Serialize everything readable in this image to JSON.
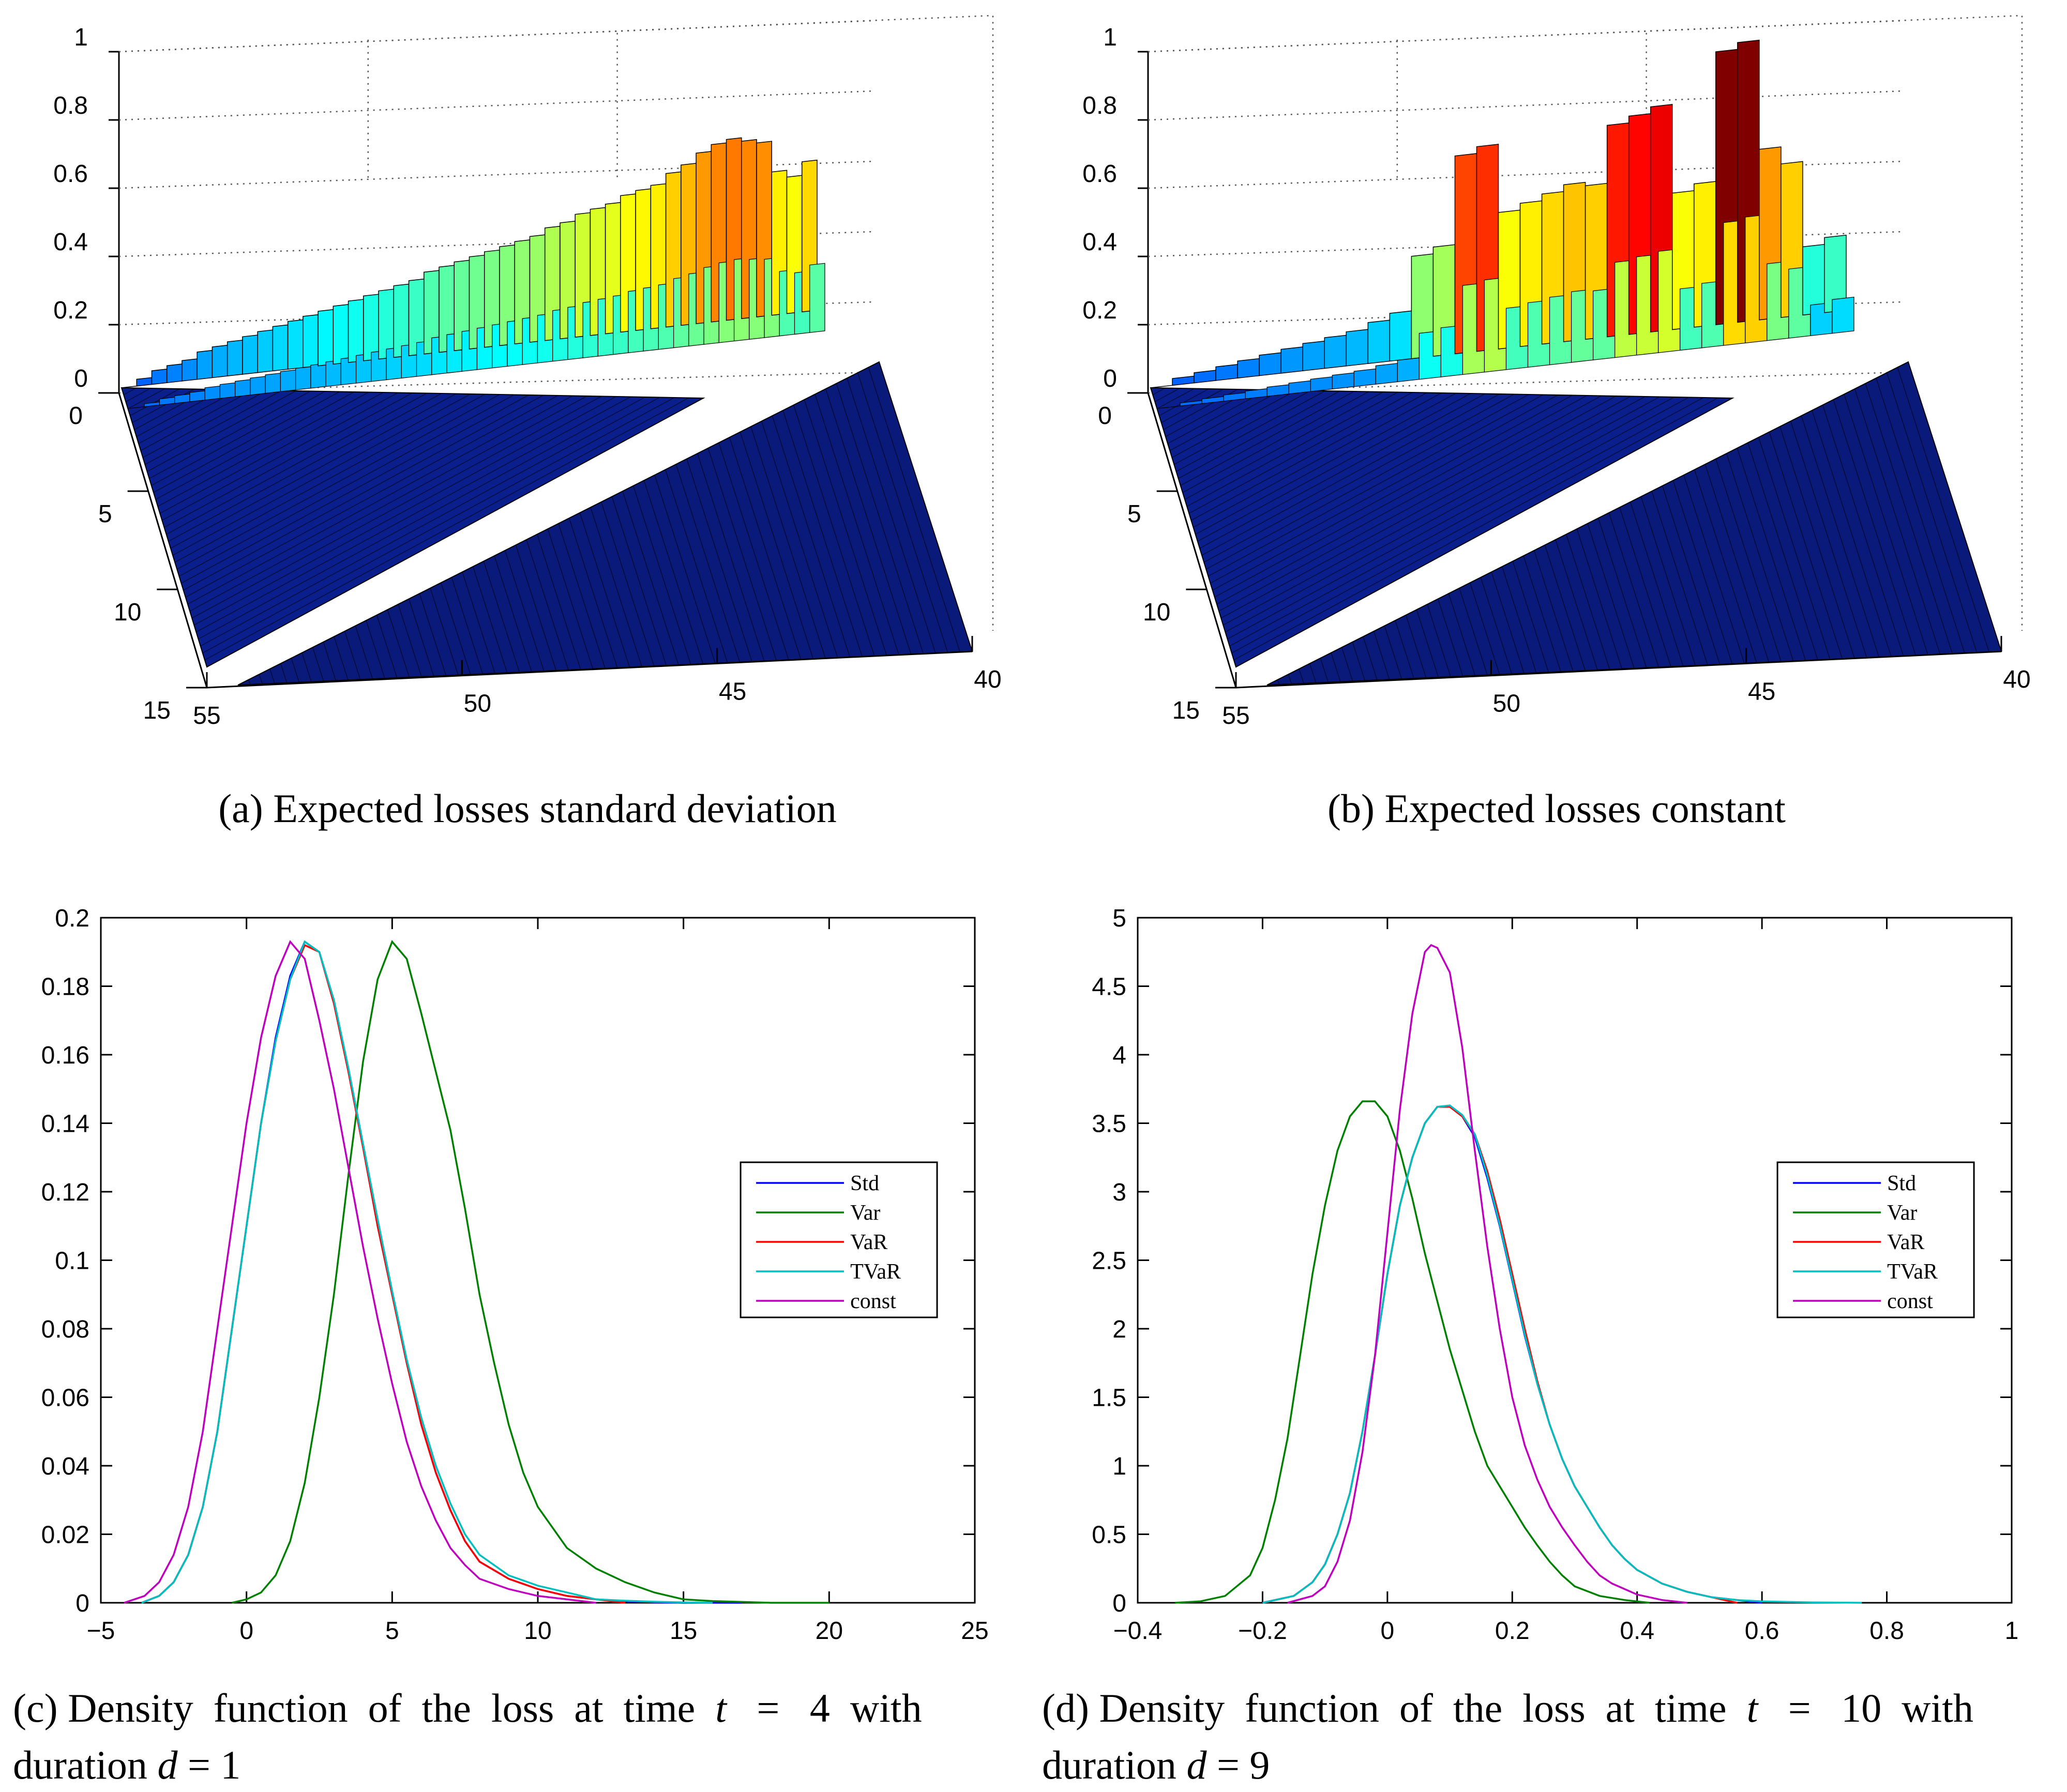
{
  "chart_data": [
    {
      "type": "surface3d",
      "panel": "a",
      "caption_label": "(a)",
      "caption": "Expected losses standard deviation",
      "z_ticks": [
        "0",
        "0.2",
        "0.4",
        "0.6",
        "0.8",
        "1"
      ],
      "y_ticks": [
        "0",
        "5",
        "10",
        "15"
      ],
      "x_ticks": [
        "55",
        "50",
        "45",
        "40"
      ],
      "ridge_front": [
        0,
        0.02,
        0.04,
        0.05,
        0.06,
        0.08,
        0.09,
        0.1,
        0.11,
        0.12,
        0.13,
        0.14,
        0.15,
        0.16,
        0.17,
        0.18,
        0.19,
        0.2,
        0.21,
        0.22,
        0.24,
        0.25,
        0.26,
        0.27,
        0.28,
        0.29,
        0.3,
        0.31,
        0.33,
        0.34,
        0.36,
        0.37,
        0.38,
        0.4,
        0.41,
        0.42,
        0.45,
        0.47,
        0.5,
        0.52,
        0.53,
        0.52,
        0.51,
        0.42,
        0.4,
        0.44
      ],
      "colormap": "jet"
    },
    {
      "type": "surface3d",
      "panel": "b",
      "caption_label": "(b)",
      "caption": "Expected losses constant",
      "z_ticks": [
        "0",
        "0.2",
        "0.4",
        "0.6",
        "0.8",
        "1"
      ],
      "y_ticks": [
        "0",
        "5",
        "10",
        "15"
      ],
      "x_ticks": [
        "55",
        "50",
        "45",
        "40"
      ],
      "ridge_front": [
        0,
        0.02,
        0.03,
        0.04,
        0.05,
        0.06,
        0.07,
        0.08,
        0.09,
        0.1,
        0.12,
        0.14,
        0.3,
        0.32,
        0.58,
        0.6,
        0.4,
        0.42,
        0.44,
        0.46,
        0.45,
        0.62,
        0.64,
        0.66,
        0.4,
        0.42,
        0.8,
        0.82,
        0.5,
        0.45,
        0.2,
        0.22
      ],
      "colormap": "jet"
    },
    {
      "type": "line",
      "panel": "c",
      "caption_label": "(c)",
      "caption_line1": "Density function of the loss at time",
      "caption_var1": "t",
      "caption_eq": "=",
      "caption_val1": "4",
      "caption_with": "with",
      "caption_line2": "duration",
      "caption_var2": "d",
      "caption_eq2": "= 1",
      "xlim": [
        -5,
        25
      ],
      "ylim": [
        0,
        0.2
      ],
      "x_ticks": [
        "−5",
        "0",
        "5",
        "10",
        "15",
        "20",
        "25"
      ],
      "y_ticks": [
        "0",
        "0.02",
        "0.04",
        "0.06",
        "0.08",
        "0.1",
        "0.12",
        "0.14",
        "0.16",
        "0.18",
        "0.2"
      ],
      "legend": [
        "Std",
        "Var",
        "VaR",
        "TVaR",
        "const"
      ],
      "series": [
        {
          "name": "Std",
          "color": "#0000ff",
          "x": [
            -3.6,
            -3,
            -2.5,
            -2,
            -1.5,
            -1,
            -0.5,
            0,
            0.5,
            1,
            1.5,
            2,
            2.5,
            3,
            3.5,
            4,
            4.5,
            5,
            5.5,
            6,
            6.5,
            7,
            7.5,
            8,
            9,
            10,
            11,
            12,
            13,
            14,
            15,
            16,
            17
          ],
          "y": [
            0,
            0.002,
            0.006,
            0.014,
            0.028,
            0.05,
            0.08,
            0.11,
            0.14,
            0.165,
            0.183,
            0.193,
            0.19,
            0.175,
            0.155,
            0.133,
            0.11,
            0.09,
            0.07,
            0.052,
            0.038,
            0.027,
            0.018,
            0.012,
            0.007,
            0.004,
            0.002,
            0.001,
            0.0005,
            0.0002,
            0,
            0,
            0
          ]
        },
        {
          "name": "Var",
          "color": "#008000",
          "x": [
            -0.5,
            0,
            0.5,
            1,
            1.5,
            2,
            2.5,
            3,
            3.5,
            4,
            4.5,
            5,
            5.5,
            6,
            6.5,
            7,
            7.5,
            8,
            8.5,
            9,
            9.5,
            10,
            11,
            12,
            13,
            14,
            15,
            16,
            18,
            20
          ],
          "y": [
            0,
            0.001,
            0.003,
            0.008,
            0.018,
            0.035,
            0.06,
            0.09,
            0.125,
            0.158,
            0.182,
            0.193,
            0.188,
            0.172,
            0.155,
            0.138,
            0.115,
            0.09,
            0.07,
            0.052,
            0.038,
            0.028,
            0.016,
            0.01,
            0.006,
            0.003,
            0.001,
            0.0005,
            0,
            0
          ]
        },
        {
          "name": "VaR",
          "color": "#ff0000",
          "x": [
            -3.6,
            -3,
            -2.5,
            -2,
            -1.5,
            -1,
            -0.5,
            0,
            0.5,
            1,
            1.5,
            2,
            2.5,
            3,
            3.5,
            4,
            4.5,
            5,
            5.5,
            6,
            6.5,
            7,
            7.5,
            8,
            9,
            10,
            11,
            12,
            13
          ],
          "y": [
            0,
            0.002,
            0.006,
            0.014,
            0.028,
            0.05,
            0.08,
            0.11,
            0.14,
            0.164,
            0.182,
            0.192,
            0.19,
            0.175,
            0.155,
            0.133,
            0.11,
            0.09,
            0.07,
            0.052,
            0.038,
            0.027,
            0.018,
            0.012,
            0.007,
            0.004,
            0.002,
            0.001,
            0
          ]
        },
        {
          "name": "TVaR",
          "color": "#00bfbf",
          "x": [
            -3.6,
            -3,
            -2.5,
            -2,
            -1.5,
            -1,
            -0.5,
            0,
            0.5,
            1,
            1.5,
            2,
            2.5,
            3,
            3.5,
            4,
            4.5,
            5,
            5.5,
            6,
            6.5,
            7,
            7.5,
            8,
            9,
            10,
            11,
            12,
            13,
            14,
            15,
            16
          ],
          "y": [
            0,
            0.002,
            0.006,
            0.014,
            0.028,
            0.05,
            0.08,
            0.11,
            0.14,
            0.164,
            0.182,
            0.193,
            0.19,
            0.176,
            0.156,
            0.134,
            0.112,
            0.091,
            0.071,
            0.054,
            0.04,
            0.029,
            0.02,
            0.014,
            0.008,
            0.005,
            0.003,
            0.001,
            0.0006,
            0.0003,
            0.0001,
            0
          ]
        },
        {
          "name": "const",
          "color": "#bf00bf",
          "x": [
            -4.2,
            -3.5,
            -3,
            -2.5,
            -2,
            -1.5,
            -1,
            -0.5,
            0,
            0.5,
            1,
            1.5,
            2,
            2.5,
            3,
            3.5,
            4,
            4.5,
            5,
            5.5,
            6,
            6.5,
            7,
            7.5,
            8,
            9,
            10,
            11,
            12
          ],
          "y": [
            0,
            0.002,
            0.006,
            0.014,
            0.028,
            0.05,
            0.08,
            0.11,
            0.14,
            0.165,
            0.183,
            0.193,
            0.188,
            0.17,
            0.15,
            0.127,
            0.104,
            0.083,
            0.064,
            0.047,
            0.034,
            0.024,
            0.016,
            0.011,
            0.007,
            0.004,
            0.002,
            0.001,
            0
          ]
        }
      ]
    },
    {
      "type": "line",
      "panel": "d",
      "caption_label": "(d)",
      "caption_line1": "Density function of the loss at time",
      "caption_var1": "t",
      "caption_eq": "=",
      "caption_val1": "10",
      "caption_with": "with",
      "caption_line2": "duration",
      "caption_var2": "d",
      "caption_eq2": "= 9",
      "xlim": [
        -0.4,
        1
      ],
      "ylim": [
        0,
        5
      ],
      "x_ticks": [
        "−0.4",
        "−0.2",
        "0",
        "0.2",
        "0.4",
        "0.6",
        "0.8",
        "1"
      ],
      "y_ticks": [
        "0",
        "0.5",
        "1",
        "1.5",
        "2",
        "2.5",
        "3",
        "3.5",
        "4",
        "4.5",
        "5"
      ],
      "legend": [
        "Std",
        "Var",
        "VaR",
        "TVaR",
        "const"
      ],
      "series": [
        {
          "name": "Std",
          "color": "#0000ff",
          "x": [
            -0.2,
            -0.15,
            -0.12,
            -0.1,
            -0.08,
            -0.06,
            -0.04,
            -0.02,
            0,
            0.02,
            0.04,
            0.06,
            0.08,
            0.1,
            0.12,
            0.14,
            0.16,
            0.18,
            0.2,
            0.22,
            0.24,
            0.26,
            0.28,
            0.3,
            0.32,
            0.34,
            0.36,
            0.38,
            0.4,
            0.44,
            0.48,
            0.52,
            0.56,
            0.6
          ],
          "y": [
            0,
            0.05,
            0.15,
            0.28,
            0.5,
            0.8,
            1.25,
            1.8,
            2.4,
            2.9,
            3.25,
            3.5,
            3.62,
            3.62,
            3.55,
            3.4,
            3.1,
            2.75,
            2.35,
            1.95,
            1.6,
            1.3,
            1.05,
            0.85,
            0.7,
            0.55,
            0.42,
            0.32,
            0.24,
            0.14,
            0.08,
            0.04,
            0.02,
            0
          ]
        },
        {
          "name": "Var",
          "color": "#008000",
          "x": [
            -0.34,
            -0.3,
            -0.26,
            -0.22,
            -0.2,
            -0.18,
            -0.16,
            -0.14,
            -0.12,
            -0.1,
            -0.08,
            -0.06,
            -0.04,
            -0.02,
            0,
            0.02,
            0.04,
            0.06,
            0.08,
            0.1,
            0.12,
            0.14,
            0.16,
            0.18,
            0.2,
            0.22,
            0.24,
            0.26,
            0.28,
            0.3,
            0.34,
            0.38,
            0.42
          ],
          "y": [
            0,
            0.01,
            0.05,
            0.2,
            0.4,
            0.75,
            1.2,
            1.8,
            2.4,
            2.9,
            3.3,
            3.55,
            3.66,
            3.66,
            3.55,
            3.3,
            2.95,
            2.55,
            2.2,
            1.85,
            1.55,
            1.25,
            1,
            0.85,
            0.7,
            0.55,
            0.42,
            0.3,
            0.2,
            0.12,
            0.05,
            0.02,
            0
          ]
        },
        {
          "name": "VaR",
          "color": "#ff0000",
          "x": [
            -0.2,
            -0.15,
            -0.12,
            -0.1,
            -0.08,
            -0.06,
            -0.04,
            -0.02,
            0,
            0.02,
            0.04,
            0.06,
            0.08,
            0.1,
            0.12,
            0.14,
            0.16,
            0.18,
            0.2,
            0.22,
            0.24,
            0.26,
            0.28,
            0.3,
            0.32,
            0.34,
            0.36,
            0.38,
            0.4,
            0.44,
            0.48,
            0.52,
            0.56
          ],
          "y": [
            0,
            0.05,
            0.15,
            0.28,
            0.5,
            0.8,
            1.25,
            1.8,
            2.4,
            2.9,
            3.25,
            3.5,
            3.62,
            3.62,
            3.55,
            3.42,
            3.15,
            2.8,
            2.4,
            2,
            1.62,
            1.3,
            1.05,
            0.85,
            0.7,
            0.55,
            0.42,
            0.32,
            0.24,
            0.14,
            0.08,
            0.04,
            0
          ]
        },
        {
          "name": "TVaR",
          "color": "#00bfbf",
          "x": [
            -0.2,
            -0.15,
            -0.12,
            -0.1,
            -0.08,
            -0.06,
            -0.04,
            -0.02,
            0,
            0.02,
            0.04,
            0.06,
            0.08,
            0.1,
            0.12,
            0.14,
            0.16,
            0.18,
            0.2,
            0.22,
            0.24,
            0.26,
            0.28,
            0.3,
            0.32,
            0.34,
            0.36,
            0.38,
            0.4,
            0.44,
            0.48,
            0.52,
            0.56,
            0.6,
            0.68,
            0.76
          ],
          "y": [
            0,
            0.05,
            0.15,
            0.28,
            0.5,
            0.8,
            1.25,
            1.8,
            2.4,
            2.9,
            3.25,
            3.5,
            3.62,
            3.63,
            3.56,
            3.42,
            3.12,
            2.76,
            2.36,
            1.96,
            1.6,
            1.3,
            1.05,
            0.85,
            0.7,
            0.55,
            0.42,
            0.32,
            0.24,
            0.14,
            0.08,
            0.04,
            0.02,
            0.01,
            0.003,
            0
          ]
        },
        {
          "name": "const",
          "color": "#bf00bf",
          "x": [
            -0.16,
            -0.12,
            -0.1,
            -0.08,
            -0.06,
            -0.04,
            -0.02,
            0,
            0.02,
            0.04,
            0.06,
            0.07,
            0.08,
            0.1,
            0.12,
            0.14,
            0.16,
            0.18,
            0.2,
            0.22,
            0.24,
            0.26,
            0.28,
            0.3,
            0.32,
            0.34,
            0.36,
            0.4,
            0.44,
            0.48
          ],
          "y": [
            0,
            0.05,
            0.12,
            0.3,
            0.6,
            1.1,
            1.8,
            2.7,
            3.6,
            4.3,
            4.75,
            4.8,
            4.78,
            4.6,
            4.05,
            3.3,
            2.6,
            2,
            1.5,
            1.15,
            0.9,
            0.7,
            0.55,
            0.42,
            0.3,
            0.2,
            0.14,
            0.06,
            0.02,
            0
          ]
        }
      ]
    }
  ]
}
